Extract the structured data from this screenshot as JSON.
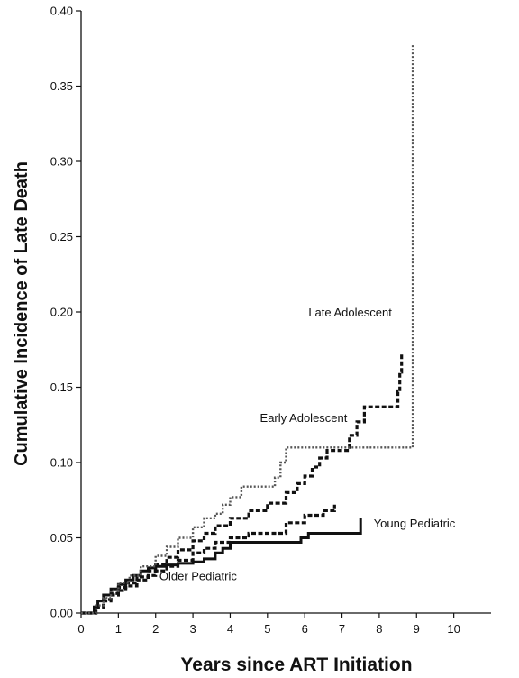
{
  "chart_data": {
    "type": "line",
    "step": true,
    "xlabel": "Years since ART Initiation",
    "ylabel": "Cumulative Incidence of Late Death",
    "xlim": [
      0,
      11
    ],
    "ylim": [
      0,
      0.4
    ],
    "x_ticks": [
      "0",
      "1",
      "2",
      "3",
      "4",
      "5",
      "6",
      "7",
      "8",
      "9",
      "10"
    ],
    "y_ticks": [
      "0.00",
      "0.05",
      "0.10",
      "0.15",
      "0.20",
      "0.25",
      "0.30",
      "0.35",
      "0.40"
    ],
    "grid": false,
    "legend": "inline labels",
    "series": [
      {
        "name": "Young Pediatric",
        "color": "#111111",
        "line_style": "solid",
        "points": [
          [
            0,
            0
          ],
          [
            0.3,
            0
          ],
          [
            0.35,
            0.004
          ],
          [
            0.45,
            0.008
          ],
          [
            0.6,
            0.012
          ],
          [
            0.8,
            0.016
          ],
          [
            1.0,
            0.019
          ],
          [
            1.2,
            0.022
          ],
          [
            1.4,
            0.025
          ],
          [
            1.6,
            0.028
          ],
          [
            1.8,
            0.03
          ],
          [
            2.0,
            0.031
          ],
          [
            2.3,
            0.032
          ],
          [
            2.6,
            0.033
          ],
          [
            3.0,
            0.034
          ],
          [
            3.3,
            0.036
          ],
          [
            3.6,
            0.04
          ],
          [
            3.8,
            0.043
          ],
          [
            4.0,
            0.047
          ],
          [
            4.5,
            0.047
          ],
          [
            5.0,
            0.047
          ],
          [
            5.5,
            0.047
          ],
          [
            5.9,
            0.05
          ],
          [
            6.1,
            0.053
          ],
          [
            7.0,
            0.053
          ],
          [
            7.5,
            0.053
          ],
          [
            7.5,
            0.063
          ]
        ]
      },
      {
        "name": "Older Pediatric",
        "color": "#111111",
        "line_style": "dashed",
        "points": [
          [
            0,
            0
          ],
          [
            0.3,
            0
          ],
          [
            0.4,
            0.004
          ],
          [
            0.6,
            0.008
          ],
          [
            0.8,
            0.012
          ],
          [
            1.0,
            0.015
          ],
          [
            1.2,
            0.018
          ],
          [
            1.5,
            0.022
          ],
          [
            1.8,
            0.025
          ],
          [
            2.0,
            0.028
          ],
          [
            2.3,
            0.031
          ],
          [
            2.6,
            0.035
          ],
          [
            3.0,
            0.04
          ],
          [
            3.3,
            0.043
          ],
          [
            3.6,
            0.047
          ],
          [
            4.0,
            0.05
          ],
          [
            4.5,
            0.053
          ],
          [
            5.0,
            0.053
          ],
          [
            5.5,
            0.06
          ],
          [
            6.0,
            0.065
          ],
          [
            6.5,
            0.068
          ],
          [
            6.8,
            0.072
          ]
        ]
      },
      {
        "name": "Early Adolescent",
        "color": "#111111",
        "line_style": "dashed",
        "points": [
          [
            0,
            0
          ],
          [
            0.3,
            0
          ],
          [
            0.4,
            0.004
          ],
          [
            0.6,
            0.009
          ],
          [
            0.8,
            0.013
          ],
          [
            1.0,
            0.017
          ],
          [
            1.2,
            0.02
          ],
          [
            1.5,
            0.024
          ],
          [
            1.8,
            0.028
          ],
          [
            2.0,
            0.032
          ],
          [
            2.3,
            0.037
          ],
          [
            2.6,
            0.042
          ],
          [
            3.0,
            0.048
          ],
          [
            3.3,
            0.053
          ],
          [
            3.6,
            0.058
          ],
          [
            4.0,
            0.063
          ],
          [
            4.5,
            0.068
          ],
          [
            5.0,
            0.073
          ],
          [
            5.5,
            0.08
          ],
          [
            5.8,
            0.086
          ],
          [
            6.0,
            0.091
          ],
          [
            6.2,
            0.097
          ],
          [
            6.4,
            0.103
          ],
          [
            6.6,
            0.108
          ],
          [
            7.0,
            0.108
          ],
          [
            7.2,
            0.118
          ],
          [
            7.4,
            0.127
          ],
          [
            7.6,
            0.137
          ],
          [
            8.4,
            0.137
          ],
          [
            8.5,
            0.147
          ],
          [
            8.55,
            0.16
          ],
          [
            8.6,
            0.172
          ]
        ]
      },
      {
        "name": "Late Adolescent",
        "color": "#555555",
        "line_style": "dotted",
        "points": [
          [
            0,
            0
          ],
          [
            0.3,
            0
          ],
          [
            0.4,
            0.005
          ],
          [
            0.6,
            0.01
          ],
          [
            0.8,
            0.015
          ],
          [
            1.0,
            0.02
          ],
          [
            1.3,
            0.025
          ],
          [
            1.6,
            0.031
          ],
          [
            2.0,
            0.038
          ],
          [
            2.3,
            0.044
          ],
          [
            2.6,
            0.05
          ],
          [
            3.0,
            0.057
          ],
          [
            3.3,
            0.063
          ],
          [
            3.6,
            0.066
          ],
          [
            3.8,
            0.072
          ],
          [
            4.0,
            0.077
          ],
          [
            4.3,
            0.084
          ],
          [
            5.0,
            0.084
          ],
          [
            5.2,
            0.09
          ],
          [
            5.35,
            0.1
          ],
          [
            5.5,
            0.11
          ],
          [
            6.0,
            0.11
          ],
          [
            7.0,
            0.11
          ],
          [
            8.0,
            0.11
          ],
          [
            8.9,
            0.11
          ],
          [
            8.9,
            0.378
          ]
        ]
      }
    ],
    "annotations": [
      {
        "text": "Late Adolescent",
        "x": 6.1,
        "y": 0.197
      },
      {
        "text": "Early Adolescent",
        "x": 4.8,
        "y": 0.127
      },
      {
        "text": "Young Pediatric",
        "x": 7.85,
        "y": 0.057
      },
      {
        "text": "Older Pediatric",
        "x": 2.1,
        "y": 0.022
      }
    ]
  }
}
